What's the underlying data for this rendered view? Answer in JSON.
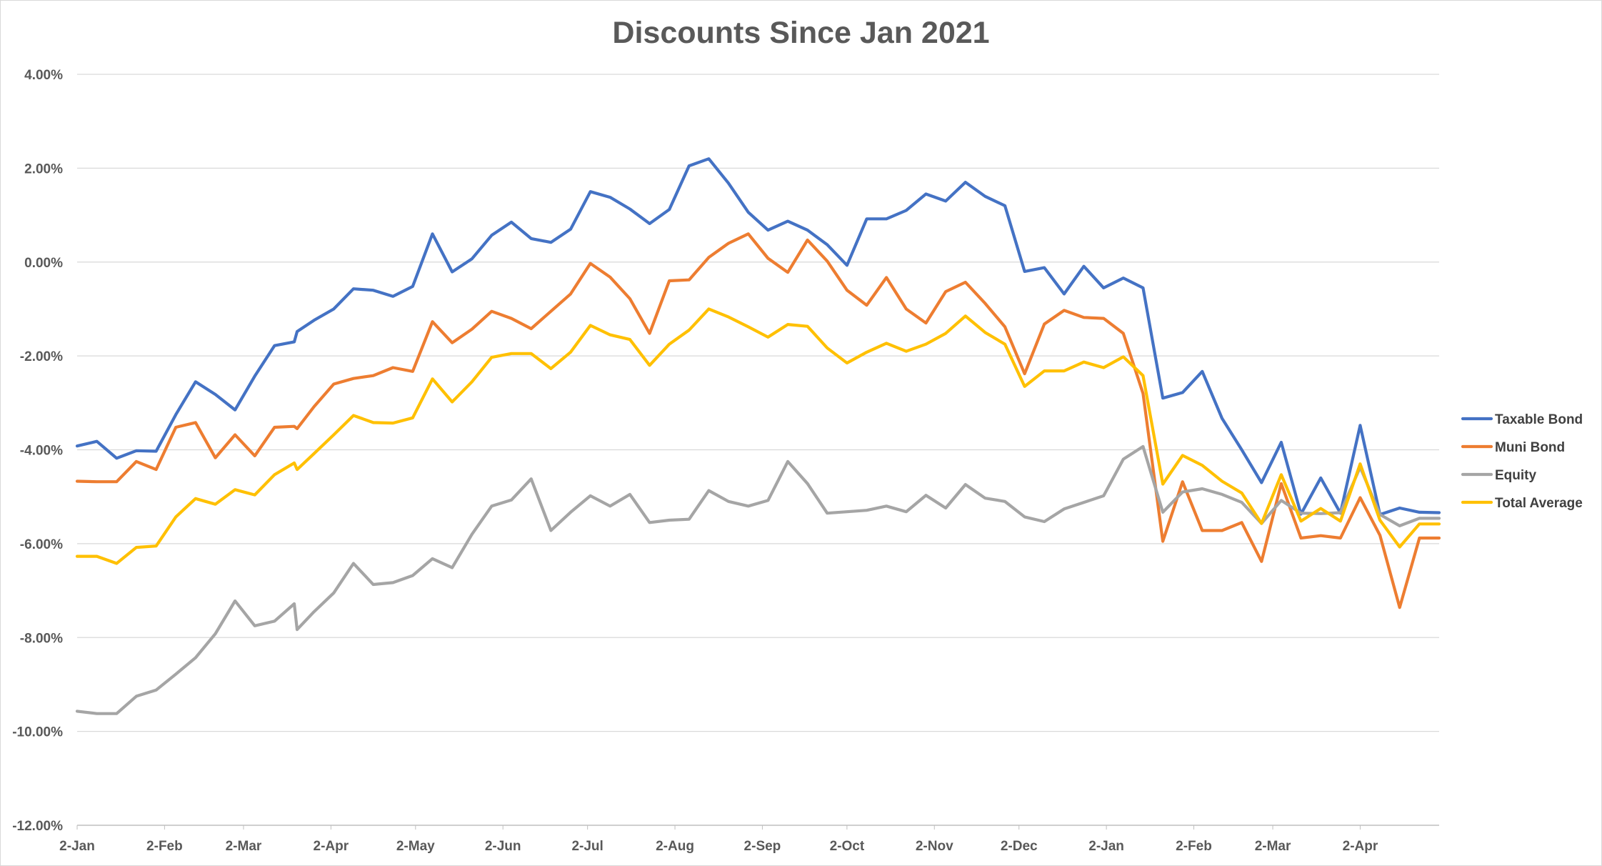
{
  "chart_data": {
    "type": "line",
    "title": "Discounts Since Jan 2021",
    "xlabel": "",
    "ylabel": "",
    "ylim": [
      -12,
      4
    ],
    "y_ticks": [
      "4.00%",
      "2.00%",
      "0.00%",
      "-2.00%",
      "-4.00%",
      "-6.00%",
      "-8.00%",
      "-10.00%",
      "-12.00%"
    ],
    "x_ticks": [
      "2-Jan",
      "2-Feb",
      "2-Mar",
      "2-Apr",
      "2-May",
      "2-Jun",
      "2-Jul",
      "2-Aug",
      "2-Sep",
      "2-Oct",
      "2-Nov",
      "2-Dec",
      "2-Jan",
      "2-Feb",
      "2-Mar",
      "2-Apr"
    ],
    "x_start": "2021-01-02",
    "x_end": "2022-04-30",
    "grid": true,
    "legend_position": "right",
    "x": [
      "2021-01-02",
      "2021-01-09",
      "2021-01-16",
      "2021-01-23",
      "2021-01-30",
      "2021-02-06",
      "2021-02-13",
      "2021-02-20",
      "2021-02-27",
      "2021-03-06",
      "2021-03-13",
      "2021-03-20",
      "2021-03-21",
      "2021-03-27",
      "2021-04-03",
      "2021-04-10",
      "2021-04-17",
      "2021-04-24",
      "2021-05-01",
      "2021-05-08",
      "2021-05-15",
      "2021-05-22",
      "2021-05-29",
      "2021-06-05",
      "2021-06-12",
      "2021-06-19",
      "2021-06-26",
      "2021-07-03",
      "2021-07-10",
      "2021-07-17",
      "2021-07-24",
      "2021-07-31",
      "2021-08-07",
      "2021-08-14",
      "2021-08-21",
      "2021-08-28",
      "2021-09-04",
      "2021-09-11",
      "2021-09-18",
      "2021-09-25",
      "2021-10-02",
      "2021-10-09",
      "2021-10-16",
      "2021-10-23",
      "2021-10-30",
      "2021-11-06",
      "2021-11-13",
      "2021-11-20",
      "2021-11-27",
      "2021-12-04",
      "2021-12-11",
      "2021-12-18",
      "2021-12-25",
      "2022-01-01",
      "2022-01-08",
      "2022-01-15",
      "2022-01-22",
      "2022-01-29",
      "2022-02-05",
      "2022-02-12",
      "2022-02-19",
      "2022-02-26",
      "2022-03-05",
      "2022-03-12",
      "2022-03-19",
      "2022-03-26",
      "2022-04-02",
      "2022-04-09",
      "2022-04-16",
      "2022-04-23",
      "2022-04-30"
    ],
    "series": [
      {
        "name": "Taxable Bond",
        "color": "#4472c4",
        "values": [
          -3.92,
          -3.82,
          -4.18,
          -4.02,
          -4.03,
          -3.25,
          -2.55,
          -2.82,
          -3.15,
          -2.43,
          -1.78,
          -1.7,
          -1.48,
          -1.24,
          -1.0,
          -0.57,
          -0.6,
          -0.73,
          -0.52,
          0.6,
          -0.21,
          0.07,
          0.57,
          0.85,
          0.5,
          0.42,
          0.7,
          1.5,
          1.38,
          1.13,
          0.82,
          1.12,
          2.05,
          2.2,
          1.68,
          1.06,
          0.68,
          0.87,
          0.68,
          0.37,
          -0.07,
          0.92,
          0.92,
          1.1,
          1.45,
          1.3,
          1.7,
          1.4,
          1.2,
          -0.2,
          -0.12,
          -0.68,
          -0.09,
          -0.55,
          -0.34,
          -0.55,
          -2.9,
          -2.78,
          -2.33,
          -3.33,
          -4.0,
          -4.7,
          -3.84,
          -5.37,
          -4.6,
          -5.35,
          -3.48,
          -5.38,
          -5.24,
          -5.33,
          -5.34
        ]
      },
      {
        "name": "Muni Bond",
        "color": "#ed7d31",
        "values": [
          -4.67,
          -4.68,
          -4.68,
          -4.25,
          -4.42,
          -3.52,
          -3.42,
          -4.17,
          -3.68,
          -4.13,
          -3.52,
          -3.5,
          -3.55,
          -3.08,
          -2.6,
          -2.48,
          -2.42,
          -2.25,
          -2.33,
          -1.27,
          -1.72,
          -1.43,
          -1.05,
          -1.2,
          -1.42,
          -1.05,
          -0.68,
          -0.03,
          -0.32,
          -0.78,
          -1.52,
          -0.4,
          -0.38,
          0.1,
          0.4,
          0.6,
          0.08,
          -0.22,
          0.47,
          0.02,
          -0.6,
          -0.92,
          -0.33,
          -1.0,
          -1.3,
          -0.63,
          -0.43,
          -0.88,
          -1.38,
          -2.38,
          -1.32,
          -1.03,
          -1.18,
          -1.2,
          -1.52,
          -2.8,
          -5.95,
          -4.68,
          -5.72,
          -5.72,
          -5.55,
          -6.38,
          -4.72,
          -5.88,
          -5.83,
          -5.88,
          -5.02,
          -5.82,
          -7.36,
          -5.88,
          -5.88
        ]
      },
      {
        "name": "Equity",
        "color": "#a5a5a5",
        "values": [
          -9.57,
          -9.62,
          -9.62,
          -9.25,
          -9.12,
          -8.78,
          -8.43,
          -7.92,
          -7.22,
          -7.75,
          -7.65,
          -7.28,
          -7.83,
          -7.45,
          -7.05,
          -6.42,
          -6.87,
          -6.83,
          -6.68,
          -6.32,
          -6.51,
          -5.8,
          -5.2,
          -5.07,
          -4.62,
          -5.72,
          -5.33,
          -4.98,
          -5.2,
          -4.95,
          -5.55,
          -5.5,
          -5.48,
          -4.87,
          -5.1,
          -5.2,
          -5.08,
          -4.25,
          -4.72,
          -5.35,
          -5.32,
          -5.29,
          -5.2,
          -5.32,
          -4.97,
          -5.24,
          -4.74,
          -5.03,
          -5.1,
          -5.43,
          -5.53,
          -5.26,
          -5.12,
          -4.98,
          -4.2,
          -3.93,
          -5.33,
          -4.9,
          -4.83,
          -4.95,
          -5.12,
          -5.57,
          -5.08,
          -5.35,
          -5.36,
          -5.34,
          -4.37,
          -5.38,
          -5.62,
          -5.46,
          -5.46
        ]
      },
      {
        "name": "Total Average",
        "color": "#ffc000",
        "values": [
          -6.27,
          -6.27,
          -6.42,
          -6.08,
          -6.05,
          -5.43,
          -5.04,
          -5.16,
          -4.85,
          -4.96,
          -4.53,
          -4.28,
          -4.42,
          -4.08,
          -3.68,
          -3.27,
          -3.42,
          -3.43,
          -3.32,
          -2.49,
          -2.98,
          -2.55,
          -2.03,
          -1.95,
          -1.95,
          -2.27,
          -1.92,
          -1.35,
          -1.55,
          -1.65,
          -2.2,
          -1.75,
          -1.45,
          -1.0,
          -1.17,
          -1.38,
          -1.6,
          -1.33,
          -1.37,
          -1.83,
          -2.15,
          -1.92,
          -1.73,
          -1.9,
          -1.75,
          -1.52,
          -1.15,
          -1.5,
          -1.75,
          -2.65,
          -2.32,
          -2.32,
          -2.13,
          -2.25,
          -2.02,
          -2.42,
          -4.73,
          -4.12,
          -4.33,
          -4.67,
          -4.92,
          -5.57,
          -4.53,
          -5.52,
          -5.25,
          -5.52,
          -4.3,
          -5.5,
          -6.07,
          -5.58,
          -5.58
        ]
      }
    ]
  }
}
